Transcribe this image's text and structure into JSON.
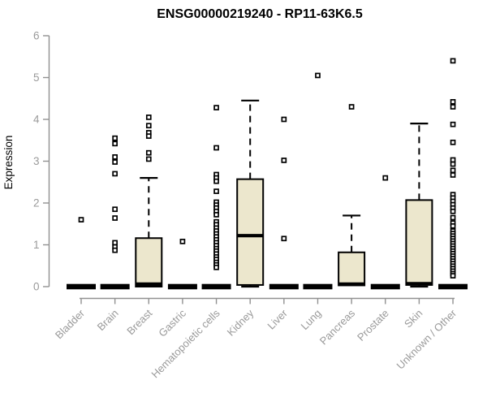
{
  "chart_data": {
    "type": "boxplot",
    "title": "ENSG00000219240 - RP11-63K6.5",
    "ylabel": "Expression",
    "ylim": [
      0,
      6
    ],
    "yticks": [
      "0",
      "1",
      "2",
      "3",
      "4",
      "5",
      "6"
    ],
    "grid": false,
    "legend": "none",
    "categories": [
      "Bladder",
      "Brain",
      "Breast",
      "Gastric",
      "Hematopoietic cells",
      "Kidney",
      "Liver",
      "Lung",
      "Pancreas",
      "Prostate",
      "Skin",
      "Unknown / Other"
    ],
    "boxes": [
      {
        "category": "Bladder",
        "q1": 0,
        "median": 0,
        "q3": 0,
        "whisker_low": 0,
        "whisker_high": 0,
        "outliers": [
          1.6
        ]
      },
      {
        "category": "Brain",
        "q1": 0,
        "median": 0,
        "q3": 0,
        "whisker_low": 0,
        "whisker_high": 0,
        "outliers": [
          3.55,
          3.42,
          3.1,
          2.98,
          2.7,
          1.85,
          1.64,
          1.05,
          0.95,
          0.87
        ]
      },
      {
        "category": "Breast",
        "q1": 0,
        "median": 0.06,
        "q3": 1.16,
        "whisker_low": 0,
        "whisker_high": 2.6,
        "outliers": [
          4.05,
          3.85,
          3.68,
          3.6,
          3.2,
          3.05
        ]
      },
      {
        "category": "Gastric",
        "q1": 0,
        "median": 0,
        "q3": 0,
        "whisker_low": 0,
        "whisker_high": 0,
        "outliers": [
          1.08
        ]
      },
      {
        "category": "Hematopoietic cells",
        "q1": 0,
        "median": 0,
        "q3": 0,
        "whisker_low": 0,
        "whisker_high": 0,
        "outliers": [
          4.28,
          3.32,
          2.68,
          2.6,
          2.52,
          2.28,
          2.02,
          1.95,
          1.88,
          1.8,
          1.72,
          1.55,
          1.48,
          1.4,
          1.33,
          1.26,
          1.19,
          1.12,
          1.05,
          0.98,
          0.91,
          0.85,
          0.78,
          0.71,
          0.65,
          0.58,
          0.52,
          0.46
        ]
      },
      {
        "category": "Kidney",
        "q1": 0.04,
        "median": 1.22,
        "q3": 2.57,
        "whisker_low": 0,
        "whisker_high": 4.45,
        "outliers": []
      },
      {
        "category": "Liver",
        "q1": 0,
        "median": 0,
        "q3": 0,
        "whisker_low": 0,
        "whisker_high": 0,
        "outliers": [
          4.0,
          3.02,
          1.15
        ]
      },
      {
        "category": "Lung",
        "q1": 0,
        "median": 0,
        "q3": 0,
        "whisker_low": 0,
        "whisker_high": 0,
        "outliers": [
          5.05
        ]
      },
      {
        "category": "Pancreas",
        "q1": 0.03,
        "median": 0.06,
        "q3": 0.82,
        "whisker_low": 0,
        "whisker_high": 1.7,
        "outliers": [
          4.3
        ]
      },
      {
        "category": "Prostate",
        "q1": 0,
        "median": 0,
        "q3": 0,
        "whisker_low": 0,
        "whisker_high": 0,
        "outliers": [
          2.6
        ]
      },
      {
        "category": "Skin",
        "q1": 0.04,
        "median": 0.07,
        "q3": 2.07,
        "whisker_low": 0,
        "whisker_high": 3.9,
        "outliers": []
      },
      {
        "category": "Unknown / Other",
        "q1": 0,
        "median": 0,
        "q3": 0,
        "whisker_low": 0,
        "whisker_high": 0,
        "outliers": [
          5.4,
          4.42,
          4.3,
          3.88,
          3.45,
          3.03,
          2.93,
          2.78,
          2.67,
          2.2,
          2.12,
          2.04,
          1.96,
          1.88,
          1.8,
          1.65,
          1.52,
          1.45,
          1.33,
          1.27,
          1.21,
          1.15,
          1.09,
          1.03,
          0.97,
          0.91,
          0.85,
          0.79,
          0.73,
          0.67,
          0.61,
          0.55,
          0.49,
          0.43,
          0.37,
          0.31,
          0.26
        ]
      }
    ],
    "colors": {
      "box_fill": "#ECE7CD",
      "box_border": "#000000",
      "median": "#000000",
      "whisker": "#000000",
      "outlier": "#000000",
      "axis": "#919191",
      "tick_label": "#9A9A9A",
      "title": "#000000",
      "background": "#FFFFFF"
    }
  }
}
